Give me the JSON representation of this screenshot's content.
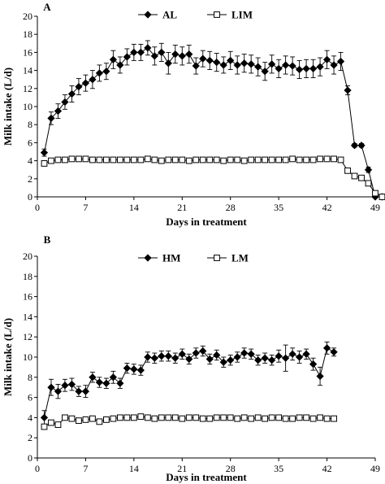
{
  "chart_data": [
    {
      "type": "line",
      "panel_label": "A",
      "xlabel": "Days in treatment",
      "ylabel": "Milk intake (L/d)",
      "xlim": [
        0,
        49
      ],
      "ylim": [
        0,
        20
      ],
      "xticks": [
        0,
        7,
        14,
        21,
        28,
        35,
        42,
        49
      ],
      "yticks": [
        0,
        2,
        4,
        6,
        8,
        10,
        12,
        14,
        16,
        18,
        20
      ],
      "legend_position": "top-center",
      "series": [
        {
          "name": "AL",
          "marker": "filled-diamond",
          "x": [
            1,
            2,
            3,
            4,
            5,
            6,
            7,
            8,
            9,
            10,
            11,
            12,
            13,
            14,
            15,
            16,
            17,
            18,
            19,
            20,
            21,
            22,
            23,
            24,
            25,
            26,
            27,
            28,
            29,
            30,
            31,
            32,
            33,
            34,
            35,
            36,
            37,
            38,
            39,
            40,
            41,
            42,
            43,
            44,
            45,
            46,
            47,
            48,
            49,
            50
          ],
          "y": [
            4.9,
            8.7,
            9.5,
            10.5,
            11.4,
            12.2,
            12.6,
            13.0,
            13.7,
            13.9,
            15.2,
            14.6,
            15.5,
            16.0,
            16.0,
            16.5,
            15.6,
            16.0,
            14.8,
            15.8,
            15.6,
            15.8,
            14.5,
            15.3,
            15.1,
            14.9,
            14.6,
            15.1,
            14.6,
            14.8,
            14.7,
            14.4,
            13.9,
            14.7,
            14.2,
            14.6,
            14.5,
            14.1,
            14.2,
            14.2,
            14.4,
            15.2,
            14.6,
            15.0,
            11.8,
            5.7,
            5.7,
            3.0,
            0.0,
            0.0
          ],
          "err": [
            0.4,
            0.7,
            0.8,
            0.8,
            0.9,
            0.9,
            0.9,
            1.0,
            0.9,
            0.9,
            1.0,
            0.9,
            0.9,
            0.9,
            0.9,
            0.8,
            1.0,
            1.0,
            1.2,
            1.0,
            1.0,
            1.0,
            0.9,
            0.9,
            1.0,
            1.0,
            0.9,
            1.0,
            1.0,
            1.0,
            1.0,
            1.0,
            1.0,
            1.0,
            1.0,
            1.0,
            1.0,
            1.0,
            1.0,
            1.0,
            1.0,
            1.0,
            1.0,
            1.0,
            0.5,
            0.2,
            0.2,
            0.3,
            0.1,
            0.1
          ]
        },
        {
          "name": "LIM",
          "marker": "open-square",
          "x": [
            1,
            2,
            3,
            4,
            5,
            6,
            7,
            8,
            9,
            10,
            11,
            12,
            13,
            14,
            15,
            16,
            17,
            18,
            19,
            20,
            21,
            22,
            23,
            24,
            25,
            26,
            27,
            28,
            29,
            30,
            31,
            32,
            33,
            34,
            35,
            36,
            37,
            38,
            39,
            40,
            41,
            42,
            43,
            44,
            45,
            46,
            47,
            48,
            49,
            50
          ],
          "y": [
            3.7,
            4.0,
            4.1,
            4.1,
            4.2,
            4.2,
            4.2,
            4.1,
            4.1,
            4.1,
            4.1,
            4.1,
            4.1,
            4.1,
            4.1,
            4.2,
            4.1,
            4.0,
            4.1,
            4.1,
            4.1,
            4.0,
            4.1,
            4.1,
            4.1,
            4.1,
            4.0,
            4.1,
            4.1,
            4.0,
            4.1,
            4.1,
            4.1,
            4.1,
            4.1,
            4.1,
            4.2,
            4.1,
            4.1,
            4.1,
            4.2,
            4.2,
            4.2,
            4.1,
            2.9,
            2.3,
            2.1,
            1.5,
            0.4,
            0.0
          ]
        }
      ]
    },
    {
      "type": "line",
      "panel_label": "B",
      "xlabel": "Days in treatment",
      "ylabel": "Milk intake (L/d)",
      "xlim": [
        0,
        49
      ],
      "ylim": [
        0,
        20
      ],
      "xticks": [
        0,
        7,
        14,
        21,
        28,
        35,
        42,
        49
      ],
      "yticks": [
        0,
        2,
        4,
        6,
        8,
        10,
        12,
        14,
        16,
        18,
        20
      ],
      "legend_position": "top-center",
      "series": [
        {
          "name": "HM",
          "marker": "filled-diamond",
          "x": [
            1,
            2,
            3,
            4,
            5,
            6,
            7,
            8,
            9,
            10,
            11,
            12,
            13,
            14,
            15,
            16,
            17,
            18,
            19,
            20,
            21,
            22,
            23,
            24,
            25,
            26,
            27,
            28,
            29,
            30,
            31,
            32,
            33,
            34,
            35,
            36,
            37,
            38,
            39,
            40,
            41,
            42,
            43
          ],
          "y": [
            4.0,
            7.0,
            6.6,
            7.2,
            7.3,
            6.6,
            6.6,
            8.0,
            7.5,
            7.4,
            8.0,
            7.4,
            8.9,
            8.8,
            8.7,
            10.0,
            9.9,
            10.1,
            10.1,
            9.9,
            10.3,
            9.8,
            10.4,
            10.6,
            9.8,
            10.2,
            9.5,
            9.7,
            10.0,
            10.4,
            10.3,
            9.7,
            9.9,
            9.7,
            10.1,
            9.9,
            10.3,
            10.0,
            10.3,
            9.3,
            8.1,
            10.9,
            10.5
          ],
          "err": [
            0.7,
            0.8,
            0.7,
            0.6,
            0.6,
            0.5,
            0.6,
            0.5,
            0.5,
            0.5,
            0.6,
            0.5,
            0.5,
            0.5,
            0.5,
            0.5,
            0.5,
            0.5,
            0.5,
            0.5,
            0.5,
            0.5,
            0.5,
            0.5,
            0.5,
            0.5,
            0.5,
            0.5,
            0.5,
            0.5,
            0.5,
            0.5,
            0.5,
            0.5,
            0.6,
            1.3,
            0.6,
            0.6,
            0.5,
            0.6,
            0.9,
            0.6,
            0.4
          ]
        },
        {
          "name": "LM",
          "marker": "open-square",
          "x": [
            1,
            2,
            3,
            4,
            5,
            6,
            7,
            8,
            9,
            10,
            11,
            12,
            13,
            14,
            15,
            16,
            17,
            18,
            19,
            20,
            21,
            22,
            23,
            24,
            25,
            26,
            27,
            28,
            29,
            30,
            31,
            32,
            33,
            34,
            35,
            36,
            37,
            38,
            39,
            40,
            41,
            42,
            43
          ],
          "y": [
            3.1,
            3.5,
            3.3,
            4.0,
            3.9,
            3.7,
            3.8,
            3.9,
            3.6,
            3.8,
            3.9,
            4.0,
            4.0,
            4.0,
            4.1,
            4.0,
            3.9,
            4.0,
            4.0,
            4.0,
            3.9,
            4.0,
            4.0,
            3.9,
            3.9,
            4.0,
            4.0,
            4.0,
            3.9,
            4.0,
            3.9,
            4.0,
            3.9,
            4.0,
            4.0,
            3.9,
            3.9,
            4.0,
            4.0,
            3.9,
            4.0,
            3.9,
            3.9
          ]
        }
      ]
    }
  ]
}
